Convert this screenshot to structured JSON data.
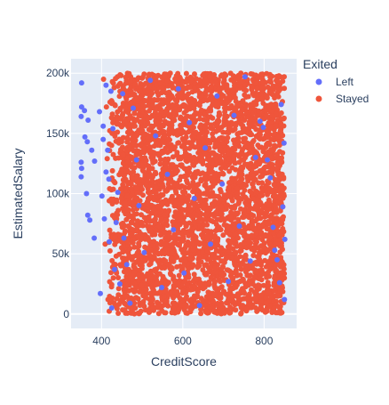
{
  "chart_data": {
    "type": "scatter",
    "xlabel": "CreditScore",
    "ylabel": "EstimatedSalary",
    "xlim": [
      325,
      880
    ],
    "ylim": [
      -12000,
      212000
    ],
    "x_ticks": [
      400,
      600,
      800
    ],
    "x_tick_labels": [
      "400",
      "600",
      "800"
    ],
    "y_ticks": [
      0,
      50000,
      100000,
      150000,
      200000
    ],
    "y_tick_labels": [
      "0",
      "50k",
      "100k",
      "150k",
      "200k"
    ],
    "grid": true,
    "legend": {
      "title": "Exited",
      "placement": "top-right, outside plot",
      "entries": [
        {
          "name": "Left",
          "color": "#636efa"
        },
        {
          "name": "Stayed",
          "color": "#ef553b"
        }
      ]
    },
    "series": [
      {
        "name": "Left",
        "color": "#636efa",
        "points": [
          [
            351,
            192000
          ],
          [
            351,
            172000
          ],
          [
            358,
            169000
          ],
          [
            350,
            164000
          ],
          [
            367,
            161000
          ],
          [
            376,
            136000
          ],
          [
            359,
            147000
          ],
          [
            365,
            143000
          ],
          [
            350,
            126000
          ],
          [
            351,
            121000
          ],
          [
            350,
            114000
          ],
          [
            383,
            127000
          ],
          [
            363,
            100000
          ],
          [
            366,
            82000
          ],
          [
            371,
            78000
          ],
          [
            382,
            63000
          ],
          [
            395,
            168000
          ],
          [
            404,
            156000
          ],
          [
            404,
            145000
          ],
          [
            411,
            190000
          ],
          [
            415,
            136000
          ],
          [
            411,
            118000
          ],
          [
            401,
            98000
          ],
          [
            419,
            60000
          ],
          [
            397,
            17000
          ],
          [
            423,
            185000
          ],
          [
            428,
            154000
          ],
          [
            418,
            112000
          ],
          [
            407,
            79000
          ],
          [
            432,
            37000
          ],
          [
            425,
            5000
          ],
          [
            436,
            76000
          ],
          [
            440,
            101000
          ],
          [
            445,
            25000
          ],
          [
            452,
            183000
          ],
          [
            455,
            63000
          ],
          [
            462,
            41000
          ],
          [
            470,
            9000
          ],
          [
            478,
            171000
          ],
          [
            486,
            128000
          ],
          [
            492,
            90000
          ],
          [
            505,
            51000
          ],
          [
            520,
            194000
          ],
          [
            533,
            148000
          ],
          [
            548,
            22000
          ],
          [
            562,
            116000
          ],
          [
            577,
            70000
          ],
          [
            589,
            187000
          ],
          [
            603,
            34000
          ],
          [
            616,
            159000
          ],
          [
            628,
            96000
          ],
          [
            641,
            7000
          ],
          [
            655,
            138000
          ],
          [
            668,
            58000
          ],
          [
            684,
            181000
          ],
          [
            697,
            108000
          ],
          [
            712,
            27000
          ],
          [
            726,
            165000
          ],
          [
            739,
            73000
          ],
          [
            753,
            197000
          ],
          [
            766,
            44000
          ],
          [
            779,
            130000
          ],
          [
            790,
            160000
          ],
          [
            798,
            155000
          ],
          [
            808,
            128000
          ],
          [
            815,
            113000
          ],
          [
            822,
            72000
          ],
          [
            826,
            53000
          ],
          [
            832,
            45000
          ],
          [
            838,
            26000
          ],
          [
            842,
            174000
          ],
          [
            846,
            89000
          ],
          [
            849,
            142000
          ],
          [
            851,
            62000
          ],
          [
            850,
            12000
          ]
        ]
      },
      {
        "name": "Stayed",
        "color": "#ef553b",
        "points": [
          [
            405,
            195000
          ],
          [
            409,
            58000
          ],
          [
            412,
            172000
          ],
          [
            414,
            129000
          ],
          [
            416,
            12000
          ],
          [
            419,
            94000
          ],
          [
            421,
            176000
          ],
          [
            424,
            66000
          ],
          [
            426,
            150000
          ],
          [
            429,
            30000
          ],
          [
            431,
            188000
          ],
          [
            433,
            109000
          ],
          [
            436,
            48000
          ],
          [
            438,
            161000
          ],
          [
            441,
            86000
          ],
          [
            443,
            8000
          ],
          [
            446,
            134000
          ],
          [
            448,
            198000
          ],
          [
            451,
            72000
          ],
          [
            453,
            119000
          ],
          [
            456,
            40000
          ],
          [
            458,
            182000
          ],
          [
            461,
            97000
          ],
          [
            463,
            15000
          ],
          [
            466,
            145000
          ],
          [
            468,
            63000
          ],
          [
            471,
            191000
          ],
          [
            473,
            124000
          ],
          [
            476,
            35000
          ],
          [
            478,
            79000
          ],
          [
            481,
            167000
          ],
          [
            483,
            5000
          ],
          [
            486,
            140000
          ],
          [
            488,
            102000
          ],
          [
            491,
            52000
          ],
          [
            493,
            185000
          ],
          [
            496,
            21000
          ],
          [
            498,
            156000
          ],
          [
            501,
            88000
          ]
        ]
      }
    ],
    "stayed_density": {
      "x_range": [
        405,
        850
      ],
      "y_range": [
        0,
        200000
      ],
      "note": "dense band: main mass 450-850"
    }
  }
}
